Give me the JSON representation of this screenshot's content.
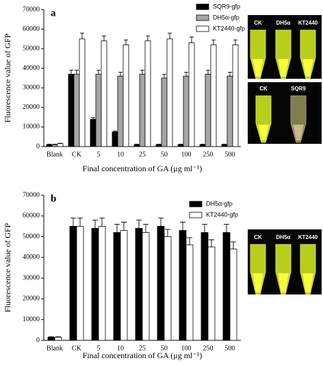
{
  "chart_data": [
    {
      "type": "bar",
      "panel": "a",
      "ylabel": "Fluorescence value of GFP",
      "xlabel": "Final concentration of GA (μg ml⁻¹)",
      "categories": [
        "Blank",
        "CK",
        "5",
        "10",
        "25",
        "50",
        "100",
        "250",
        "500"
      ],
      "ylim": [
        0,
        70000
      ],
      "yticks": [
        0,
        10000,
        20000,
        30000,
        40000,
        50000,
        60000,
        70000
      ],
      "series": [
        {
          "name": "SQR9-gfp",
          "color": "#000000",
          "values": [
            1000,
            37000,
            14000,
            7500,
            1000,
            1000,
            1000,
            1000,
            1000
          ],
          "errors": [
            200,
            2000,
            800,
            500,
            200,
            200,
            200,
            200,
            200
          ]
        },
        {
          "name": "DH5α-gfp",
          "color": "#a6a6a6",
          "values": [
            1000,
            37000,
            37000,
            36000,
            37000,
            35000,
            36000,
            37000,
            36000
          ],
          "errors": [
            200,
            2000,
            2000,
            2000,
            2000,
            2000,
            2000,
            2000,
            2000
          ]
        },
        {
          "name": "KT2440-gfp",
          "color": "#ffffff",
          "values": [
            1500,
            55000,
            54000,
            52000,
            54000,
            55000,
            53000,
            52000,
            52000
          ],
          "errors": [
            200,
            3000,
            2500,
            2500,
            2500,
            3000,
            3000,
            2500,
            2500
          ]
        }
      ],
      "image_labels": [
        [
          "CK",
          "DH5α",
          "KT2440"
        ],
        [
          "CK",
          "SQR9"
        ]
      ]
    },
    {
      "type": "bar",
      "panel": "b",
      "ylabel": "Fluorescence value of GFP",
      "xlabel": "Final concentration of GA (μg ml⁻¹)",
      "categories": [
        "Blank",
        "CK",
        "5",
        "10",
        "25",
        "50",
        "100",
        "250",
        "500"
      ],
      "ylim": [
        0,
        70000
      ],
      "yticks": [
        0,
        10000,
        20000,
        30000,
        40000,
        50000,
        60000,
        70000
      ],
      "series": [
        {
          "name": "DH5α-gfp",
          "color": "#000000",
          "values": [
            1500,
            55000,
            54000,
            52000,
            54000,
            55000,
            53000,
            52000,
            52000
          ],
          "errors": [
            200,
            4000,
            4000,
            4000,
            4000,
            4000,
            4000,
            4000,
            4000
          ]
        },
        {
          "name": "KT2440-gfp",
          "color": "#ffffff",
          "values": [
            1500,
            55000,
            55000,
            53000,
            52000,
            50000,
            46000,
            45000,
            44000
          ],
          "errors": [
            200,
            4000,
            4000,
            4000,
            4000,
            3500,
            3500,
            3500,
            3500
          ]
        }
      ],
      "image_labels": [
        [
          "CK",
          "DH5α",
          "KT2440"
        ]
      ]
    }
  ]
}
